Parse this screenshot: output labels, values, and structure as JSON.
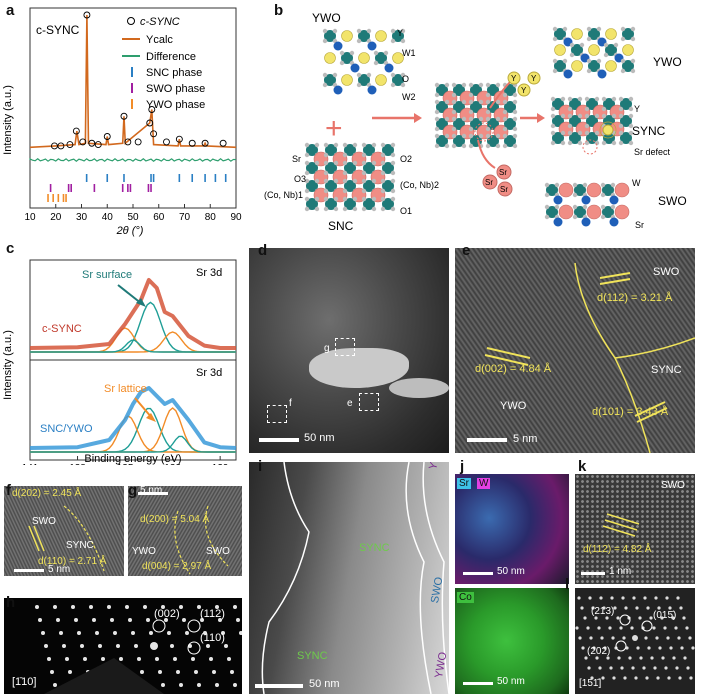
{
  "panels": {
    "a": {
      "label": "a",
      "sample": "c-SYNC",
      "ylabel": "Intensity (a.u.)",
      "xlabel": "2θ (°)",
      "legend": [
        "c-SYNC",
        "Ycalc",
        "Difference",
        "SNC phase",
        "SWO phase",
        "YWO phase"
      ],
      "xticks": [
        "10",
        "20",
        "30",
        "40",
        "50",
        "60",
        "70",
        "80",
        "90"
      ]
    },
    "b": {
      "label": "b",
      "ywo": "YWO",
      "snc": "SNC",
      "sync": "SYNC",
      "swo": "SWO",
      "plus": "+",
      "ywo_sites": [
        "Y",
        "W1",
        "O",
        "W2"
      ],
      "snc_sites": [
        "Sr",
        "O3",
        "(Co, Nb)1",
        "O2",
        "(Co, Nb)2",
        "O1"
      ],
      "sync_sites": [
        "Y",
        "Sr defect"
      ],
      "swo_sites": [
        "W",
        "Sr"
      ],
      "y_atom": "Y",
      "sr_atom": "Sr"
    },
    "c": {
      "label": "c",
      "ylabel": "Intensity (a.u.)",
      "xlabel": "Binding energy (eV)",
      "top_sample": "c-SYNC",
      "top_peak": "Sr 3d",
      "top_annot": "Sr surface",
      "bottom_sample": "SNC/YWO",
      "bottom_peak": "Sr 3d",
      "bottom_annot": "Sr lattice",
      "xticks": [
        "141",
        "138",
        "135",
        "132",
        "129"
      ]
    },
    "d": {
      "label": "d",
      "scalebar": "50 nm",
      "boxes": [
        "g",
        "f",
        "e"
      ]
    },
    "e": {
      "label": "e",
      "swo": "SWO",
      "sync": "SYNC",
      "ywo": "YWO",
      "d112": "d(112) = 3.21 Å",
      "d002": "d(002) = 4.84 Å",
      "d101": "d(101) = 3.43 Å",
      "scalebar": "5 nm"
    },
    "f": {
      "label": "f",
      "d202": "d(202) = 2.45 Å",
      "swo": "SWO",
      "sync": "SYNC",
      "d110": "d(110) = 2.71 Å",
      "scalebar": "5 nm"
    },
    "g": {
      "label": "g",
      "scalebar": "5 nm",
      "d200": "d(200) = 5.04 Å",
      "ywo": "YWO",
      "swo": "SWO",
      "d004": "d(004) = 2.97 Å"
    },
    "h": {
      "label": "h",
      "spots": [
        "(002)",
        "(112)",
        "(110)"
      ],
      "zone": "[1̄10]"
    },
    "i": {
      "label": "i",
      "ywo_top": "YWO",
      "sync_top": "SYNC",
      "swo": "SWO",
      "sync_bottom": "SYNC",
      "ywo_bottom": "YWO",
      "scalebar": "50 nm"
    },
    "j": {
      "label": "j",
      "el1": "Sr",
      "el2": "W",
      "el3": "Co",
      "scalebar1": "50 nm",
      "scalebar2": "50 nm"
    },
    "k": {
      "label": "k",
      "swo": "SWO",
      "d112": "d(112) = 4.82 Å",
      "scalebar": "1 nm"
    },
    "l": {
      "label": "l",
      "spots": [
        "(213)",
        "(015̄)",
        "(202)"
      ],
      "zone": "[151̄]"
    }
  },
  "chart_data": [
    {
      "type": "scatter",
      "title": "",
      "xlabel": "2θ (°)",
      "ylabel": "Intensity (a.u.)",
      "xlim": [
        10,
        90
      ],
      "series": [
        {
          "name": "c-SYNC",
          "x": [
            19.5,
            22,
            25.5,
            28,
            30.5,
            32.1,
            34,
            36.5,
            40,
            46.5,
            48,
            52,
            56.5,
            57.3,
            58,
            63,
            68,
            73,
            78,
            85
          ],
          "y": [
            0.03,
            0.03,
            0.04,
            0.14,
            0.06,
            1.0,
            0.05,
            0.04,
            0.1,
            0.25,
            0.06,
            0.06,
            0.2,
            0.3,
            0.12,
            0.06,
            0.08,
            0.05,
            0.05,
            0.05
          ]
        },
        {
          "name": "Ycalc",
          "x": [
            10,
            20,
            27.5,
            28.2,
            29,
            31.5,
            32.1,
            32.7,
            39.5,
            40,
            40.5,
            46,
            46.5,
            47,
            56.5,
            57.3,
            58,
            67.5,
            68,
            68.5,
            77.5,
            78,
            78.5,
            90
          ],
          "y": [
            0.02,
            0.03,
            0.04,
            0.14,
            0.04,
            0.05,
            1.0,
            0.05,
            0.04,
            0.1,
            0.04,
            0.05,
            0.25,
            0.05,
            0.2,
            0.3,
            0.04,
            0.03,
            0.08,
            0.03,
            0.03,
            0.05,
            0.03,
            0.02
          ]
        }
      ],
      "ticks": {
        "SNC phase": [
          32,
          40,
          46.5,
          57,
          58,
          68,
          73,
          78,
          82,
          86
        ],
        "SWO phase": [
          18,
          25,
          26,
          35,
          46,
          48,
          49,
          56,
          57
        ],
        "YWO phase": [
          17,
          19,
          21,
          23,
          24
        ]
      }
    },
    {
      "type": "line",
      "title": "Sr 3d",
      "xlabel": "Binding energy (eV)",
      "ylabel": "Intensity (a.u.)",
      "xlim": [
        141,
        128
      ],
      "series": [
        {
          "name": "c-SYNC",
          "x": [
            141,
            138,
            136,
            135,
            134,
            133.5,
            133,
            132.5,
            132,
            131,
            130,
            129,
            128
          ],
          "y": [
            0.05,
            0.06,
            0.1,
            0.35,
            0.65,
            0.9,
            0.8,
            0.5,
            0.45,
            0.2,
            0.08,
            0.05,
            0.05
          ]
        },
        {
          "name": "SNC/YWO",
          "x": [
            141,
            138,
            136,
            135,
            134.5,
            134,
            133.5,
            133,
            132.5,
            132,
            131,
            130,
            129,
            128
          ],
          "y": [
            0.05,
            0.06,
            0.15,
            0.4,
            0.6,
            0.75,
            0.8,
            0.7,
            0.6,
            0.65,
            0.4,
            0.12,
            0.06,
            0.05
          ]
        }
      ]
    }
  ]
}
